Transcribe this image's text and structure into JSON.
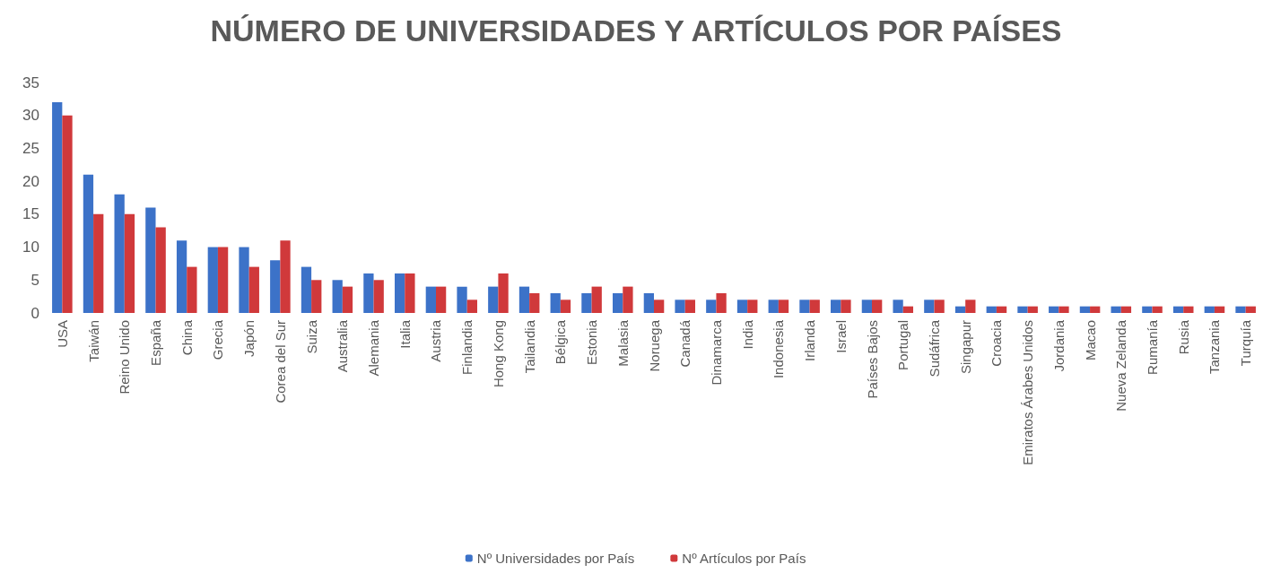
{
  "chart_data": {
    "type": "bar",
    "title": "NÚMERO DE UNIVERSIDADES Y ARTÍCULOS POR PAÍSES",
    "categories": [
      "USA",
      "Taiwán",
      "Reino Unido",
      "España",
      "China",
      "Grecia",
      "Japón",
      "Corea del Sur",
      "Suiza",
      "Australia",
      "Alemania",
      "Italia",
      "Austria",
      "Finlandia",
      "Hong Kong",
      "Tailandia",
      "Bélgica",
      "Estonia",
      "Malasia",
      "Noruega",
      "Canadá",
      "Dinamarca",
      "India",
      "Indonesia",
      "Irlanda",
      "Israel",
      "Países Bajos",
      "Portugal",
      "Sudáfrica",
      "Singapur",
      "Croacia",
      "Emiratos Árabes Unidos",
      "Jordania",
      "Macao",
      "Nueva Zelanda",
      "Rumanía",
      "Rusia",
      "Tanzania",
      "Turquía"
    ],
    "series": [
      {
        "name": "Nº Universidades por País",
        "color": "#3c72c8",
        "values": [
          32,
          21,
          18,
          16,
          11,
          10,
          10,
          8,
          7,
          5,
          6,
          6,
          4,
          4,
          4,
          4,
          3,
          3,
          3,
          3,
          2,
          2,
          2,
          2,
          2,
          2,
          2,
          2,
          2,
          1,
          1,
          1,
          1,
          1,
          1,
          1,
          1,
          1,
          1
        ]
      },
      {
        "name": "Nº Artículos por País",
        "color": "#d0393b",
        "values": [
          30,
          15,
          15,
          13,
          7,
          10,
          7,
          11,
          5,
          4,
          5,
          6,
          4,
          2,
          6,
          3,
          2,
          4,
          4,
          2,
          2,
          3,
          2,
          2,
          2,
          2,
          2,
          1,
          2,
          2,
          1,
          1,
          1,
          1,
          1,
          1,
          1,
          1,
          1
        ]
      }
    ],
    "ylim": [
      0,
      35
    ],
    "yticks": [
      0,
      5,
      10,
      15,
      20,
      25,
      30,
      35
    ],
    "grid": false,
    "legend": "bottom"
  }
}
